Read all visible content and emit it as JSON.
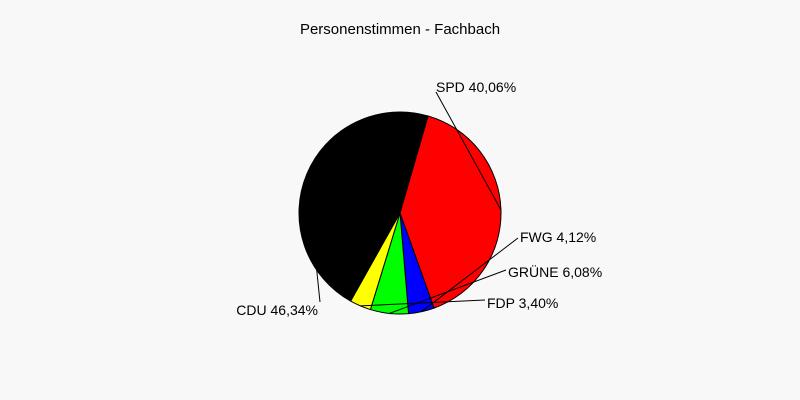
{
  "chart_data": {
    "type": "pie",
    "title": "Personenstimmen - Fachbach",
    "slices": [
      {
        "name": "SPD",
        "value": 40.06,
        "label": "SPD 40,06%",
        "color": "#ff0000"
      },
      {
        "name": "FWG",
        "value": 4.12,
        "label": "FWG 4,12%",
        "color": "#0000ff"
      },
      {
        "name": "GRÜNE",
        "value": 6.08,
        "label": "GRÜNE 6,08%",
        "color": "#00ff00"
      },
      {
        "name": "FDP",
        "value": 3.4,
        "label": "FDP 3,40%",
        "color": "#ffff00"
      },
      {
        "name": "CDU",
        "value": 46.34,
        "label": "CDU 46,34%",
        "color": "#000000"
      }
    ]
  }
}
